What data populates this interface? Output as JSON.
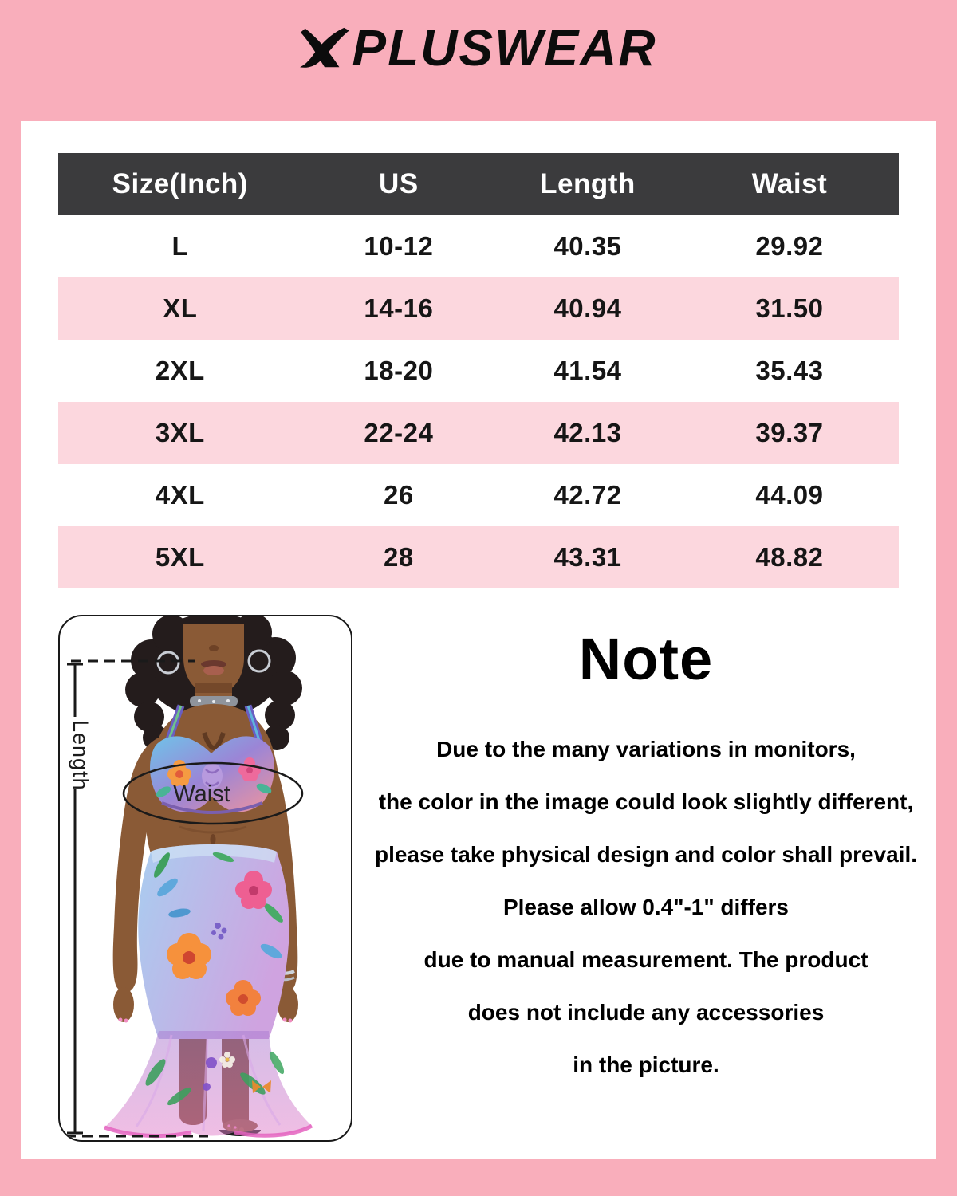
{
  "brand": {
    "name": "XPLUSWEAR",
    "logo_x": "X",
    "logo_rest": "PLUSWEAR"
  },
  "table": {
    "headers": [
      "Size(Inch)",
      "US",
      "Length",
      "Waist"
    ],
    "rows": [
      [
        "L",
        "10-12",
        "40.35",
        "29.92"
      ],
      [
        "XL",
        "14-16",
        "40.94",
        "31.50"
      ],
      [
        "2XL",
        "18-20",
        "41.54",
        "35.43"
      ],
      [
        "3XL",
        "22-24",
        "42.13",
        "39.37"
      ],
      [
        "4XL",
        "26",
        "42.72",
        "44.09"
      ],
      [
        "5XL",
        "28",
        "43.31",
        "48.82"
      ]
    ]
  },
  "figure": {
    "length_label": "Length",
    "waist_label": "Waist"
  },
  "note": {
    "title": "Note",
    "lines": [
      "Due to the many variations in monitors,",
      "the color in the image could look slightly different,",
      "please take physical design and color shall prevail.",
      "Please allow 0.4\"-1\" differs",
      "due to manual measurement. The product",
      "does not include any accessories",
      "in the picture."
    ]
  },
  "colors": {
    "page_bg": "#F9AEBB",
    "card_bg": "#FFFFFF",
    "header_bg": "#3B3B3D",
    "row_alt_bg": "#FCD7DE",
    "text": "#161616"
  }
}
